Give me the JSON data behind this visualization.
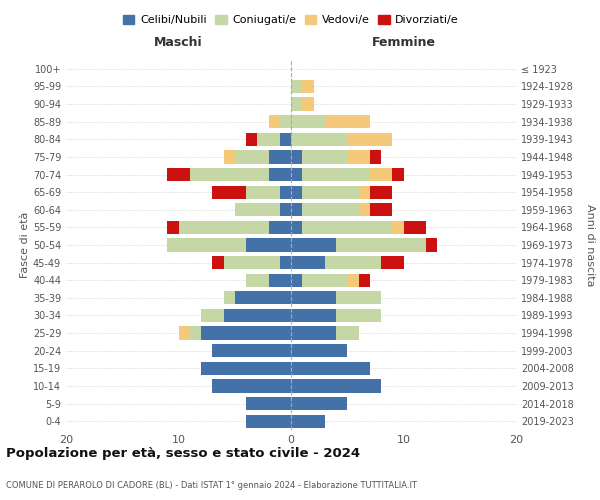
{
  "age_groups": [
    "0-4",
    "5-9",
    "10-14",
    "15-19",
    "20-24",
    "25-29",
    "30-34",
    "35-39",
    "40-44",
    "45-49",
    "50-54",
    "55-59",
    "60-64",
    "65-69",
    "70-74",
    "75-79",
    "80-84",
    "85-89",
    "90-94",
    "95-99",
    "100+"
  ],
  "birth_years": [
    "2019-2023",
    "2014-2018",
    "2009-2013",
    "2004-2008",
    "1999-2003",
    "1994-1998",
    "1989-1993",
    "1984-1988",
    "1979-1983",
    "1974-1978",
    "1969-1973",
    "1964-1968",
    "1959-1963",
    "1954-1958",
    "1949-1953",
    "1944-1948",
    "1939-1943",
    "1934-1938",
    "1929-1933",
    "1924-1928",
    "≤ 1923"
  ],
  "maschi": {
    "celibi": [
      4,
      4,
      7,
      8,
      7,
      8,
      6,
      5,
      2,
      1,
      4,
      2,
      1,
      1,
      2,
      2,
      1,
      0,
      0,
      0,
      0
    ],
    "coniugati": [
      0,
      0,
      0,
      0,
      0,
      1,
      2,
      1,
      2,
      5,
      7,
      8,
      4,
      3,
      7,
      3,
      2,
      1,
      0,
      0,
      0
    ],
    "vedovi": [
      0,
      0,
      0,
      0,
      0,
      1,
      0,
      0,
      0,
      0,
      0,
      0,
      0,
      0,
      0,
      1,
      0,
      1,
      0,
      0,
      0
    ],
    "divorziati": [
      0,
      0,
      0,
      0,
      0,
      0,
      0,
      0,
      0,
      1,
      0,
      1,
      0,
      3,
      2,
      0,
      1,
      0,
      0,
      0,
      0
    ]
  },
  "femmine": {
    "nubili": [
      3,
      5,
      8,
      7,
      5,
      4,
      4,
      4,
      1,
      3,
      4,
      1,
      1,
      1,
      1,
      1,
      0,
      0,
      0,
      0,
      0
    ],
    "coniugate": [
      0,
      0,
      0,
      0,
      0,
      2,
      4,
      4,
      4,
      5,
      8,
      8,
      5,
      5,
      6,
      4,
      5,
      3,
      1,
      1,
      0
    ],
    "vedove": [
      0,
      0,
      0,
      0,
      0,
      0,
      0,
      0,
      1,
      0,
      0,
      1,
      1,
      1,
      2,
      2,
      4,
      4,
      1,
      1,
      0
    ],
    "divorziate": [
      0,
      0,
      0,
      0,
      0,
      0,
      0,
      0,
      1,
      2,
      1,
      2,
      2,
      2,
      1,
      1,
      0,
      0,
      0,
      0,
      0
    ]
  },
  "colors": {
    "celibi": "#4472a8",
    "coniugati": "#c5d7a5",
    "vedovi": "#f5c97a",
    "divorziati": "#cc1111"
  },
  "xlim": 20,
  "title": "Popolazione per età, sesso e stato civile - 2024",
  "subtitle": "COMUNE DI PERAROLO DI CADORE (BL) - Dati ISTAT 1° gennaio 2024 - Elaborazione TUTTITALIA.IT",
  "xlabel_left": "Maschi",
  "xlabel_right": "Femmine",
  "ylabel_left": "Fasce di età",
  "ylabel_right": "Anni di nascita",
  "legend_labels": [
    "Celibi/Nubili",
    "Coniugati/e",
    "Vedovi/e",
    "Divorziati/e"
  ],
  "background_color": "#ffffff",
  "grid_color": "#cccccc"
}
